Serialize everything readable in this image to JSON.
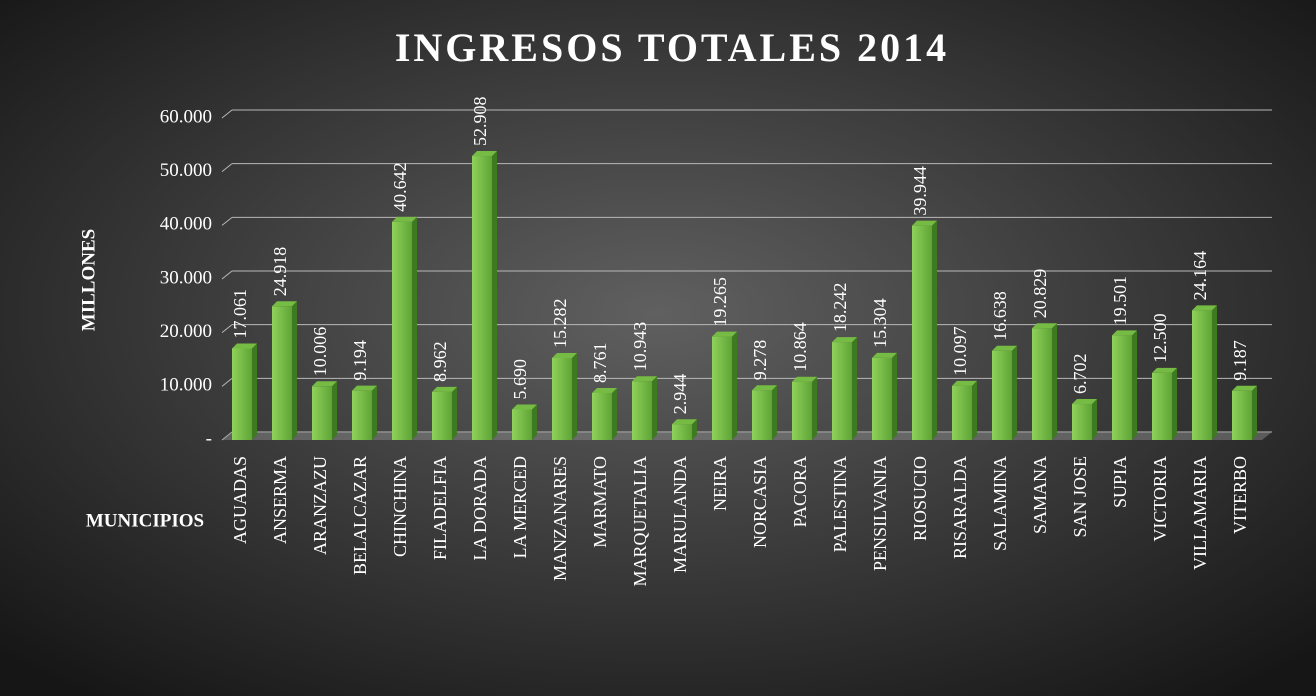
{
  "chart_data": {
    "type": "bar",
    "title": "INGRESOS TOTALES 2014",
    "y_label": "MILLONES",
    "x_label": "MUNICIPIOS",
    "categories": [
      "AGUADAS",
      "ANSERMA",
      "ARANZAZU",
      "BELALCAZAR",
      "CHINCHINA",
      "FILADELFIA",
      "LA DORADA",
      "LA MERCED",
      "MANZANARES",
      "MARMATO",
      "MARQUETALIA",
      "MARULANDA",
      "NEIRA",
      "NORCASIA",
      "PACORA",
      "PALESTINA",
      "PENSILVANIA",
      "RIOSUCIO",
      "RISARALDA",
      "SALAMINA",
      "SAMANA",
      "SAN JOSE",
      "SUPIA",
      "VICTORIA",
      "VILLAMARIA",
      "VITERBO"
    ],
    "values": [
      17061,
      24918,
      10006,
      9194,
      40642,
      8962,
      52908,
      5690,
      15282,
      8761,
      10943,
      2944,
      19265,
      9278,
      10864,
      18242,
      15304,
      39944,
      10097,
      16638,
      20829,
      6702,
      19501,
      12500,
      24164,
      9187
    ],
    "value_labels": [
      "17.061",
      "24.918",
      "10.006",
      "9.194",
      "40.642",
      "8.962",
      "52.908",
      "5.690",
      "15.282",
      "8.761",
      "10.943",
      "2.944",
      "19.265",
      "9.278",
      "10.864",
      "18.242",
      "15.304",
      "39.944",
      "10.097",
      "16.638",
      "20.829",
      "6.702",
      "19.501",
      "12.500",
      "24.164",
      "9.187"
    ],
    "color": "#76bb44",
    "ylim": [
      0,
      60000
    ],
    "yticks": [
      {
        "value": 0,
        "label": "-"
      },
      {
        "value": 10000,
        "label": "10.000"
      },
      {
        "value": 20000,
        "label": "20.000"
      },
      {
        "value": 30000,
        "label": "30.000"
      },
      {
        "value": 40000,
        "label": "40.000"
      },
      {
        "value": 50000,
        "label": "50.000"
      },
      {
        "value": 60000,
        "label": "60.000"
      }
    ],
    "grid": true
  }
}
